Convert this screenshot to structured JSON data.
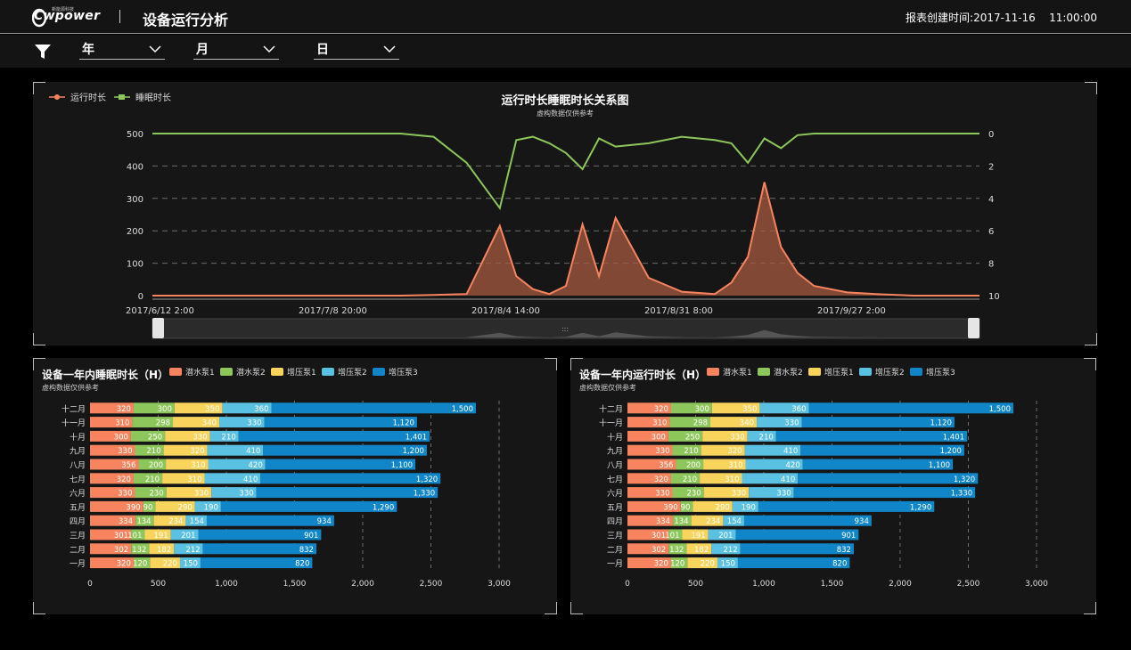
{
  "header": {
    "logo_text": "Cwpower",
    "logo_tag": "新能源科技",
    "app_title": "设备运行分析",
    "report_time_label": "报表创建时间:",
    "report_date": "2017-11-16",
    "report_clock": "11:00:00"
  },
  "filters": [
    {
      "label": "年"
    },
    {
      "label": "月"
    },
    {
      "label": "日"
    }
  ],
  "colors": {
    "orange": "#f7845e",
    "green": "#8dc65a",
    "yellow": "#f9d45c",
    "lightblue": "#5bc1e2",
    "blue": "#1086c9",
    "background": "#161616"
  },
  "chart_data": [
    {
      "type": "area",
      "title": "运行时长睡眠时长关系图",
      "subtitle": "虚构数据仅供参考",
      "legend": [
        "运行时长",
        "睡眠时长"
      ],
      "legend_position": "top-left",
      "x_tick_labels": [
        "2017/6/12 2:00",
        "2017/7/8 20:00",
        "2017/8/4 14:00",
        "2017/8/31 8:00",
        "2017/9/27 2:00"
      ],
      "y_left_ticks": [
        0,
        100,
        200,
        300,
        400,
        500
      ],
      "y_right_ticks": [
        0,
        2,
        4,
        6,
        8,
        10
      ],
      "y_right_inverse": true,
      "grid": "dashed-horizontal",
      "x": [
        0,
        4,
        8,
        12,
        16,
        18,
        20,
        22,
        26,
        30,
        34,
        38,
        42,
        44,
        46,
        48,
        50,
        52,
        54,
        56,
        60,
        64,
        68,
        70,
        72,
        74,
        76,
        78,
        80,
        84,
        88,
        92,
        96,
        100
      ],
      "series": [
        {
          "name": "运行时长",
          "values": [
            0,
            0,
            0,
            0,
            0,
            0,
            0,
            0,
            0,
            0,
            2,
            5,
            215,
            60,
            20,
            5,
            30,
            220,
            60,
            240,
            55,
            12,
            5,
            40,
            120,
            350,
            150,
            70,
            30,
            10,
            4,
            0,
            0,
            0
          ]
        },
        {
          "name": "睡眠时长",
          "values": [
            0,
            0,
            0,
            0,
            0,
            0,
            0,
            0,
            0,
            0,
            0.2,
            1.8,
            4.6,
            0.4,
            0.2,
            0.6,
            1.2,
            2.2,
            0.3,
            0.8,
            0.6,
            0.2,
            0.4,
            0.6,
            1.8,
            0.3,
            0.9,
            0.1,
            0,
            0,
            0,
            0,
            0,
            0
          ]
        }
      ]
    },
    {
      "type": "bar",
      "orientation": "horizontal-stacked",
      "title": "设备一年内睡眠时长（H）",
      "subtitle": "虚构数据仅供参考",
      "categories": [
        "一月",
        "二月",
        "三月",
        "四月",
        "五月",
        "六月",
        "七月",
        "八月",
        "九月",
        "十月",
        "十一月",
        "十二月"
      ],
      "x_ticks": [
        "0",
        "500",
        "1,000",
        "1,500",
        "2,000",
        "2,500",
        "3,000"
      ],
      "xlim": [
        0,
        3000
      ],
      "series": [
        {
          "name": "潜水泵1",
          "values": [
            320,
            302,
            301,
            334,
            390,
            330,
            320,
            356,
            330,
            300,
            310,
            320
          ]
        },
        {
          "name": "潜水泵2",
          "values": [
            120,
            132,
            101,
            134,
            90,
            230,
            210,
            200,
            210,
            250,
            298,
            300
          ]
        },
        {
          "name": "增压泵1",
          "values": [
            220,
            182,
            191,
            234,
            290,
            330,
            310,
            310,
            320,
            330,
            340,
            350
          ]
        },
        {
          "name": "增压泵2",
          "values": [
            150,
            212,
            201,
            154,
            190,
            330,
            410,
            420,
            410,
            210,
            330,
            360
          ]
        },
        {
          "name": "增压泵3",
          "values": [
            820,
            832,
            901,
            934,
            1290,
            1330,
            1320,
            1100,
            1200,
            1401,
            1120,
            1500
          ]
        }
      ],
      "value_labels": [
        [
          "320",
          "302",
          "301",
          "334",
          "390",
          "330",
          "320",
          "356",
          "330",
          "300",
          "310",
          "320"
        ],
        [
          "120",
          "132",
          "101",
          "134",
          "90",
          "230",
          "210",
          "200",
          "210",
          "250",
          "298",
          "300"
        ],
        [
          "220",
          "182",
          "191",
          "234",
          "290",
          "330",
          "310",
          "310",
          "320",
          "330",
          "340",
          "350"
        ],
        [
          "150",
          "212",
          "201",
          "154",
          "190",
          "330",
          "410",
          "420",
          "410",
          "210",
          "330",
          "360"
        ],
        [
          "820",
          "832",
          "901",
          "934",
          "1,290",
          "1,330",
          "1,320",
          "1,100",
          "1,200",
          "1,401",
          "1,120",
          "1,500"
        ]
      ]
    },
    {
      "type": "bar",
      "orientation": "horizontal-stacked",
      "title": "设备一年内运行时长（H）",
      "subtitle": "虚构数据仅供参考",
      "categories": [
        "一月",
        "二月",
        "三月",
        "四月",
        "五月",
        "六月",
        "七月",
        "八月",
        "九月",
        "十月",
        "十一月",
        "十二月"
      ],
      "x_ticks": [
        "0",
        "500",
        "1,000",
        "1,500",
        "2,000",
        "2,500",
        "3,000"
      ],
      "xlim": [
        0,
        3000
      ],
      "series": [
        {
          "name": "潜水泵1",
          "values": [
            320,
            302,
            301,
            334,
            390,
            330,
            320,
            356,
            330,
            300,
            310,
            320
          ]
        },
        {
          "name": "潜水泵2",
          "values": [
            120,
            132,
            101,
            134,
            90,
            230,
            210,
            200,
            210,
            250,
            298,
            300
          ]
        },
        {
          "name": "增压泵1",
          "values": [
            220,
            182,
            191,
            234,
            290,
            330,
            310,
            310,
            320,
            330,
            340,
            350
          ]
        },
        {
          "name": "增压泵2",
          "values": [
            150,
            212,
            201,
            154,
            190,
            330,
            410,
            420,
            410,
            210,
            330,
            360
          ]
        },
        {
          "name": "增压泵3",
          "values": [
            820,
            832,
            901,
            934,
            1290,
            1330,
            1320,
            1100,
            1200,
            1401,
            1120,
            1500
          ]
        }
      ],
      "value_labels": [
        [
          "320",
          "302",
          "301",
          "334",
          "390",
          "330",
          "320",
          "356",
          "330",
          "300",
          "310",
          "320"
        ],
        [
          "120",
          "132",
          "101",
          "134",
          "90",
          "230",
          "210",
          "200",
          "210",
          "250",
          "298",
          "300"
        ],
        [
          "220",
          "182",
          "191",
          "234",
          "290",
          "330",
          "310",
          "310",
          "320",
          "330",
          "340",
          "350"
        ],
        [
          "150",
          "212",
          "201",
          "154",
          "190",
          "330",
          "410",
          "420",
          "410",
          "210",
          "330",
          "360"
        ],
        [
          "820",
          "832",
          "901",
          "934",
          "1,290",
          "1,330",
          "1,320",
          "1,100",
          "1,200",
          "1,401",
          "1,120",
          "1,500"
        ]
      ]
    }
  ],
  "zoom": {
    "handle_label": ":::"
  }
}
